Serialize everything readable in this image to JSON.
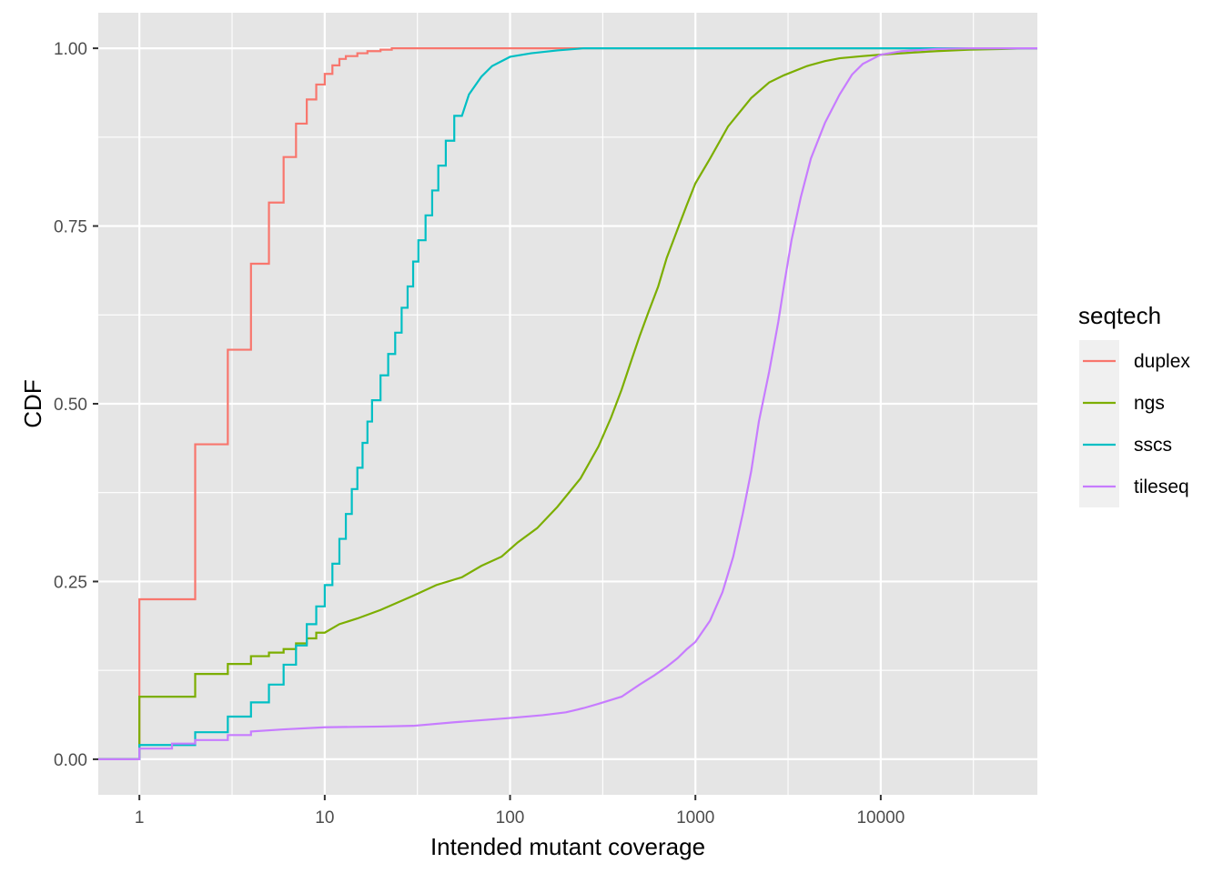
{
  "chart_data": {
    "type": "line",
    "subtype": "ecdf-step",
    "xlabel": "Intended mutant coverage",
    "ylabel": "CDF",
    "x_scale": "log10",
    "xlim": [
      0.6,
      70000
    ],
    "ylim": [
      -0.05,
      1.05
    ],
    "x_ticks": [
      1,
      10,
      100,
      1000,
      10000
    ],
    "x_tick_labels": [
      "1",
      "10",
      "100",
      "1000",
      "10000"
    ],
    "y_ticks": [
      0,
      0.25,
      0.5,
      0.75,
      1.0
    ],
    "y_tick_labels": [
      "0.00",
      "0.25",
      "0.50",
      "0.75",
      "1.00"
    ],
    "grid": true,
    "legend": {
      "title": "seqtech",
      "position": "right"
    },
    "colors": {
      "panel_bg": "#e5e5e5",
      "grid": "#ffffff",
      "legend_key_bg": "#f0f0f0"
    },
    "series": [
      {
        "name": "duplex",
        "color": "#F8766D",
        "points": [
          [
            0.6,
            0
          ],
          [
            1,
            0
          ],
          [
            1,
            0.225
          ],
          [
            2,
            0.225
          ],
          [
            2,
            0.443
          ],
          [
            3,
            0.443
          ],
          [
            3,
            0.576
          ],
          [
            4,
            0.576
          ],
          [
            4,
            0.697
          ],
          [
            5,
            0.697
          ],
          [
            5,
            0.783
          ],
          [
            6,
            0.783
          ],
          [
            6,
            0.847
          ],
          [
            7,
            0.847
          ],
          [
            7,
            0.894
          ],
          [
            8,
            0.894
          ],
          [
            8,
            0.928
          ],
          [
            9,
            0.928
          ],
          [
            9,
            0.949
          ],
          [
            10,
            0.949
          ],
          [
            10,
            0.964
          ],
          [
            11,
            0.964
          ],
          [
            11,
            0.976
          ],
          [
            12,
            0.976
          ],
          [
            12,
            0.985
          ],
          [
            13,
            0.985
          ],
          [
            13,
            0.989
          ],
          [
            15,
            0.989
          ],
          [
            15,
            0.993
          ],
          [
            17,
            0.993
          ],
          [
            17,
            0.996
          ],
          [
            20,
            0.996
          ],
          [
            20,
            0.998
          ],
          [
            23,
            0.998
          ],
          [
            23,
            1.0
          ],
          [
            70000,
            1.0
          ]
        ]
      },
      {
        "name": "ngs",
        "color": "#7CAE00",
        "points": [
          [
            0.6,
            0
          ],
          [
            1,
            0
          ],
          [
            1,
            0.088
          ],
          [
            2,
            0.088
          ],
          [
            2,
            0.12
          ],
          [
            3,
            0.12
          ],
          [
            3,
            0.134
          ],
          [
            4,
            0.134
          ],
          [
            4,
            0.145
          ],
          [
            5,
            0.145
          ],
          [
            5,
            0.15
          ],
          [
            6,
            0.15
          ],
          [
            6,
            0.155
          ],
          [
            7,
            0.155
          ],
          [
            7,
            0.163
          ],
          [
            8,
            0.163
          ],
          [
            8,
            0.17
          ],
          [
            9,
            0.17
          ],
          [
            9,
            0.178
          ],
          [
            10,
            0.178
          ],
          [
            12,
            0.19
          ],
          [
            15,
            0.198
          ],
          [
            20,
            0.21
          ],
          [
            30,
            0.23
          ],
          [
            40,
            0.245
          ],
          [
            55,
            0.256
          ],
          [
            70,
            0.272
          ],
          [
            90,
            0.285
          ],
          [
            110,
            0.305
          ],
          [
            140,
            0.325
          ],
          [
            180,
            0.355
          ],
          [
            240,
            0.395
          ],
          [
            300,
            0.44
          ],
          [
            350,
            0.48
          ],
          [
            400,
            0.52
          ],
          [
            450,
            0.56
          ],
          [
            500,
            0.595
          ],
          [
            560,
            0.63
          ],
          [
            630,
            0.665
          ],
          [
            700,
            0.705
          ],
          [
            800,
            0.745
          ],
          [
            900,
            0.78
          ],
          [
            1000,
            0.81
          ],
          [
            1200,
            0.845
          ],
          [
            1500,
            0.89
          ],
          [
            2000,
            0.93
          ],
          [
            2500,
            0.952
          ],
          [
            3000,
            0.962
          ],
          [
            4000,
            0.975
          ],
          [
            5000,
            0.982
          ],
          [
            6000,
            0.986
          ],
          [
            8000,
            0.989
          ],
          [
            10000,
            0.991
          ],
          [
            15000,
            0.994
          ],
          [
            20000,
            0.996
          ],
          [
            30000,
            0.998
          ],
          [
            45000,
            0.999
          ],
          [
            60000,
            1.0
          ],
          [
            70000,
            1.0
          ]
        ]
      },
      {
        "name": "sscs",
        "color": "#00BFC4",
        "points": [
          [
            0.6,
            0
          ],
          [
            1,
            0
          ],
          [
            1,
            0.02
          ],
          [
            2,
            0.02
          ],
          [
            2,
            0.038
          ],
          [
            3,
            0.038
          ],
          [
            3,
            0.06
          ],
          [
            4,
            0.06
          ],
          [
            4,
            0.08
          ],
          [
            5,
            0.08
          ],
          [
            5,
            0.105
          ],
          [
            6,
            0.105
          ],
          [
            6,
            0.133
          ],
          [
            7,
            0.133
          ],
          [
            7,
            0.16
          ],
          [
            8,
            0.16
          ],
          [
            8,
            0.19
          ],
          [
            9,
            0.19
          ],
          [
            9,
            0.215
          ],
          [
            10,
            0.215
          ],
          [
            10,
            0.245
          ],
          [
            11,
            0.245
          ],
          [
            11,
            0.275
          ],
          [
            12,
            0.275
          ],
          [
            12,
            0.31
          ],
          [
            13,
            0.31
          ],
          [
            13,
            0.345
          ],
          [
            14,
            0.345
          ],
          [
            14,
            0.38
          ],
          [
            15,
            0.38
          ],
          [
            15,
            0.41
          ],
          [
            16,
            0.41
          ],
          [
            16,
            0.445
          ],
          [
            17,
            0.445
          ],
          [
            17,
            0.475
          ],
          [
            18,
            0.475
          ],
          [
            18,
            0.505
          ],
          [
            20,
            0.505
          ],
          [
            20,
            0.54
          ],
          [
            22,
            0.54
          ],
          [
            22,
            0.57
          ],
          [
            24,
            0.57
          ],
          [
            24,
            0.6
          ],
          [
            26,
            0.6
          ],
          [
            26,
            0.635
          ],
          [
            28,
            0.635
          ],
          [
            28,
            0.665
          ],
          [
            30,
            0.665
          ],
          [
            30,
            0.7
          ],
          [
            32,
            0.7
          ],
          [
            32,
            0.73
          ],
          [
            35,
            0.73
          ],
          [
            35,
            0.765
          ],
          [
            38,
            0.765
          ],
          [
            38,
            0.8
          ],
          [
            41,
            0.8
          ],
          [
            41,
            0.835
          ],
          [
            45,
            0.835
          ],
          [
            45,
            0.87
          ],
          [
            50,
            0.87
          ],
          [
            50,
            0.905
          ],
          [
            55,
            0.905
          ],
          [
            60,
            0.935
          ],
          [
            70,
            0.96
          ],
          [
            80,
            0.975
          ],
          [
            100,
            0.988
          ],
          [
            130,
            0.993
          ],
          [
            180,
            0.997
          ],
          [
            250,
            1.0
          ],
          [
            70000,
            1.0
          ]
        ]
      },
      {
        "name": "tileseq",
        "color": "#C77CFF",
        "points": [
          [
            0.6,
            0
          ],
          [
            1,
            0
          ],
          [
            1,
            0.015
          ],
          [
            1.5,
            0.015
          ],
          [
            1.5,
            0.022
          ],
          [
            2,
            0.022
          ],
          [
            2,
            0.027
          ],
          [
            3,
            0.027
          ],
          [
            3,
            0.034
          ],
          [
            4,
            0.034
          ],
          [
            4,
            0.039
          ],
          [
            6,
            0.042
          ],
          [
            10,
            0.045
          ],
          [
            20,
            0.046
          ],
          [
            30,
            0.047
          ],
          [
            50,
            0.052
          ],
          [
            100,
            0.058
          ],
          [
            150,
            0.062
          ],
          [
            200,
            0.066
          ],
          [
            250,
            0.072
          ],
          [
            300,
            0.078
          ],
          [
            400,
            0.088
          ],
          [
            500,
            0.105
          ],
          [
            600,
            0.118
          ],
          [
            700,
            0.13
          ],
          [
            800,
            0.142
          ],
          [
            900,
            0.155
          ],
          [
            1000,
            0.165
          ],
          [
            1200,
            0.195
          ],
          [
            1400,
            0.235
          ],
          [
            1600,
            0.285
          ],
          [
            1800,
            0.345
          ],
          [
            2000,
            0.405
          ],
          [
            2200,
            0.475
          ],
          [
            2500,
            0.545
          ],
          [
            2800,
            0.615
          ],
          [
            3000,
            0.665
          ],
          [
            3300,
            0.73
          ],
          [
            3700,
            0.79
          ],
          [
            4200,
            0.845
          ],
          [
            5000,
            0.895
          ],
          [
            6000,
            0.935
          ],
          [
            7000,
            0.963
          ],
          [
            8000,
            0.978
          ],
          [
            10000,
            0.991
          ],
          [
            13000,
            0.996
          ],
          [
            20000,
            0.999
          ],
          [
            30000,
            1.0
          ],
          [
            70000,
            1.0
          ]
        ]
      }
    ]
  }
}
